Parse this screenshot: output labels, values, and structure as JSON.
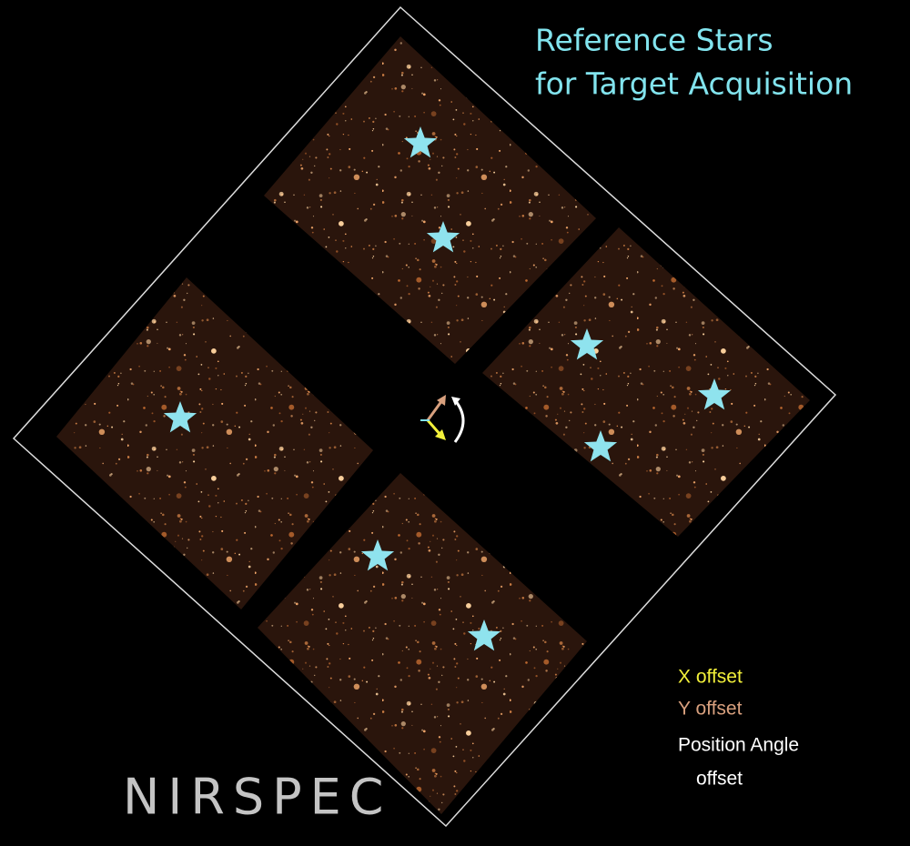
{
  "title": {
    "lines": [
      "Reference Stars",
      "for Target Acquisition"
    ]
  },
  "legend": {
    "x_offset": "X offset",
    "y_offset": "Y offset",
    "position_angle": [
      "Position Angle",
      "offset"
    ]
  },
  "instrument": "NIRSPEC"
}
